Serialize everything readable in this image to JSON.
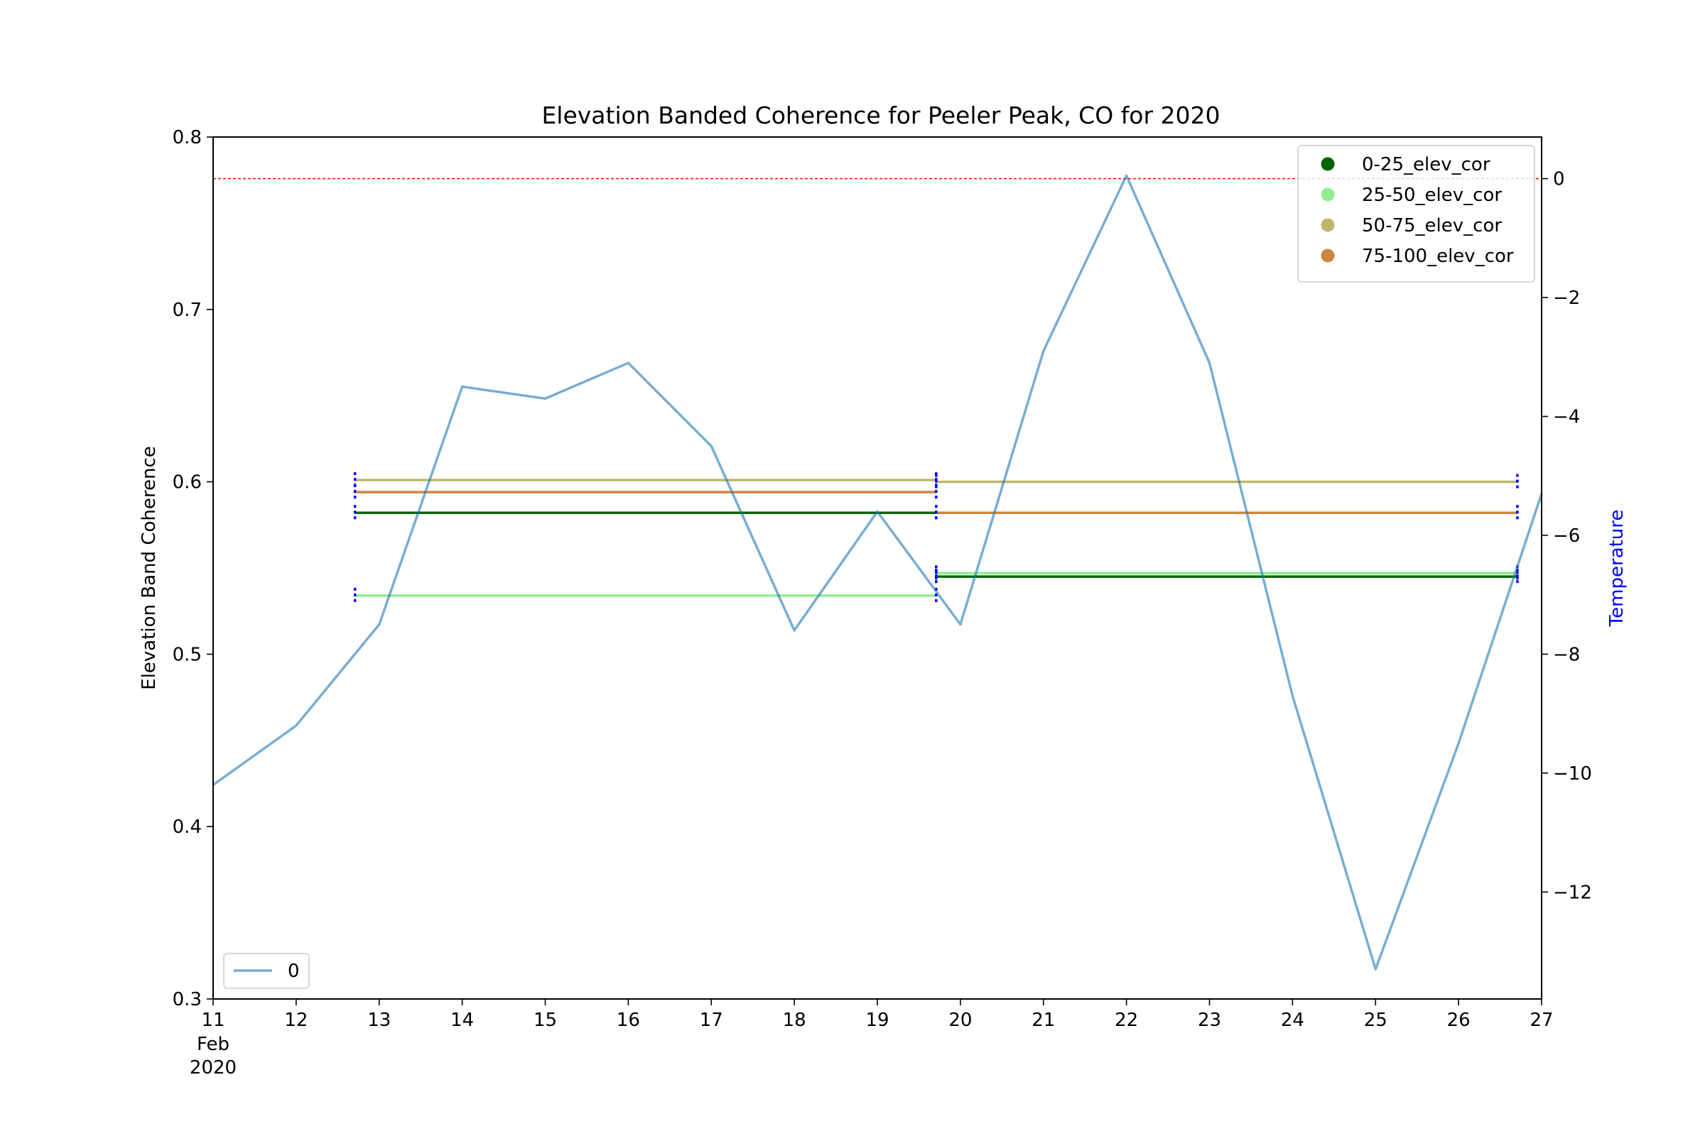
{
  "chart_data": {
    "type": "line",
    "title": "Elevation Banded Coherence for Peeler Peak, CO for 2020",
    "ylabel": "Elevation Band Coherence",
    "y2label": "Temperature",
    "ylim": [
      0.3,
      0.8
    ],
    "y2lim": [
      -13.8,
      0.7
    ],
    "xlim": [
      "2020-02-11",
      "2020-02-27"
    ],
    "x_tick_labels": [
      "11",
      "12",
      "13",
      "14",
      "15",
      "16",
      "17",
      "18",
      "19",
      "20",
      "21",
      "22",
      "23",
      "24",
      "25",
      "26",
      "27"
    ],
    "x_tick_sublabels": [
      "Feb",
      "2020"
    ],
    "y_ticks": [
      "0.3",
      "0.4",
      "0.5",
      "0.6",
      "0.7",
      "0.8"
    ],
    "y2_ticks": [
      {
        "value": 0,
        "label": "0"
      },
      {
        "value": -2,
        "label": "−2"
      },
      {
        "value": -4,
        "label": "−4"
      },
      {
        "value": -6,
        "label": "−6"
      },
      {
        "value": -8,
        "label": "−8"
      },
      {
        "value": -10,
        "label": "−10"
      },
      {
        "value": -12,
        "label": "−12"
      }
    ],
    "reference_line": {
      "axis": "y2",
      "value": 0,
      "color": "#ff0000",
      "style": "dashed"
    },
    "coherence_series": [
      {
        "name": "0-25_elev_cor",
        "color": "#006400",
        "segments": [
          {
            "start": "2020-02-12 17:00",
            "end": "2020-02-19 17:00",
            "value": 0.582
          },
          {
            "start": "2020-02-19 17:00",
            "end": "2020-02-26 17:00",
            "value": 0.545
          }
        ]
      },
      {
        "name": "25-50_elev_cor",
        "color": "#90ee90",
        "segments": [
          {
            "start": "2020-02-12 17:00",
            "end": "2020-02-19 17:00",
            "value": 0.534
          },
          {
            "start": "2020-02-19 17:00",
            "end": "2020-02-26 17:00",
            "value": 0.547
          }
        ]
      },
      {
        "name": "50-75_elev_cor",
        "color": "#bdb76b",
        "segments": [
          {
            "start": "2020-02-12 17:00",
            "end": "2020-02-19 17:00",
            "value": 0.601
          },
          {
            "start": "2020-02-19 17:00",
            "end": "2020-02-26 17:00",
            "value": 0.6
          }
        ]
      },
      {
        "name": "75-100_elev_cor",
        "color": "#cd853f",
        "segments": [
          {
            "start": "2020-02-12 17:00",
            "end": "2020-02-19 17:00",
            "value": 0.594
          },
          {
            "start": "2020-02-19 17:00",
            "end": "2020-02-26 17:00",
            "value": 0.582
          }
        ]
      }
    ],
    "temperature_series": {
      "name": "0",
      "color": "#1f77b4",
      "x": [
        "2020-02-11",
        "2020-02-12",
        "2020-02-13",
        "2020-02-14",
        "2020-02-15",
        "2020-02-16",
        "2020-02-17",
        "2020-02-18",
        "2020-02-19",
        "2020-02-20",
        "2020-02-21",
        "2020-02-22",
        "2020-02-23",
        "2020-02-24",
        "2020-02-25",
        "2020-02-26",
        "2020-02-27"
      ],
      "y": [
        -10.2,
        -9.2,
        -7.5,
        -3.5,
        -3.7,
        -3.1,
        -4.5,
        -7.6,
        -5.6,
        -7.5,
        -2.9,
        0.05,
        -3.1,
        -8.7,
        -13.3,
        -9.5,
        -5.3
      ]
    },
    "error_bar_color": "#0000ff",
    "legend": {
      "position": "top-right",
      "secondary_position": "bottom-left"
    }
  }
}
